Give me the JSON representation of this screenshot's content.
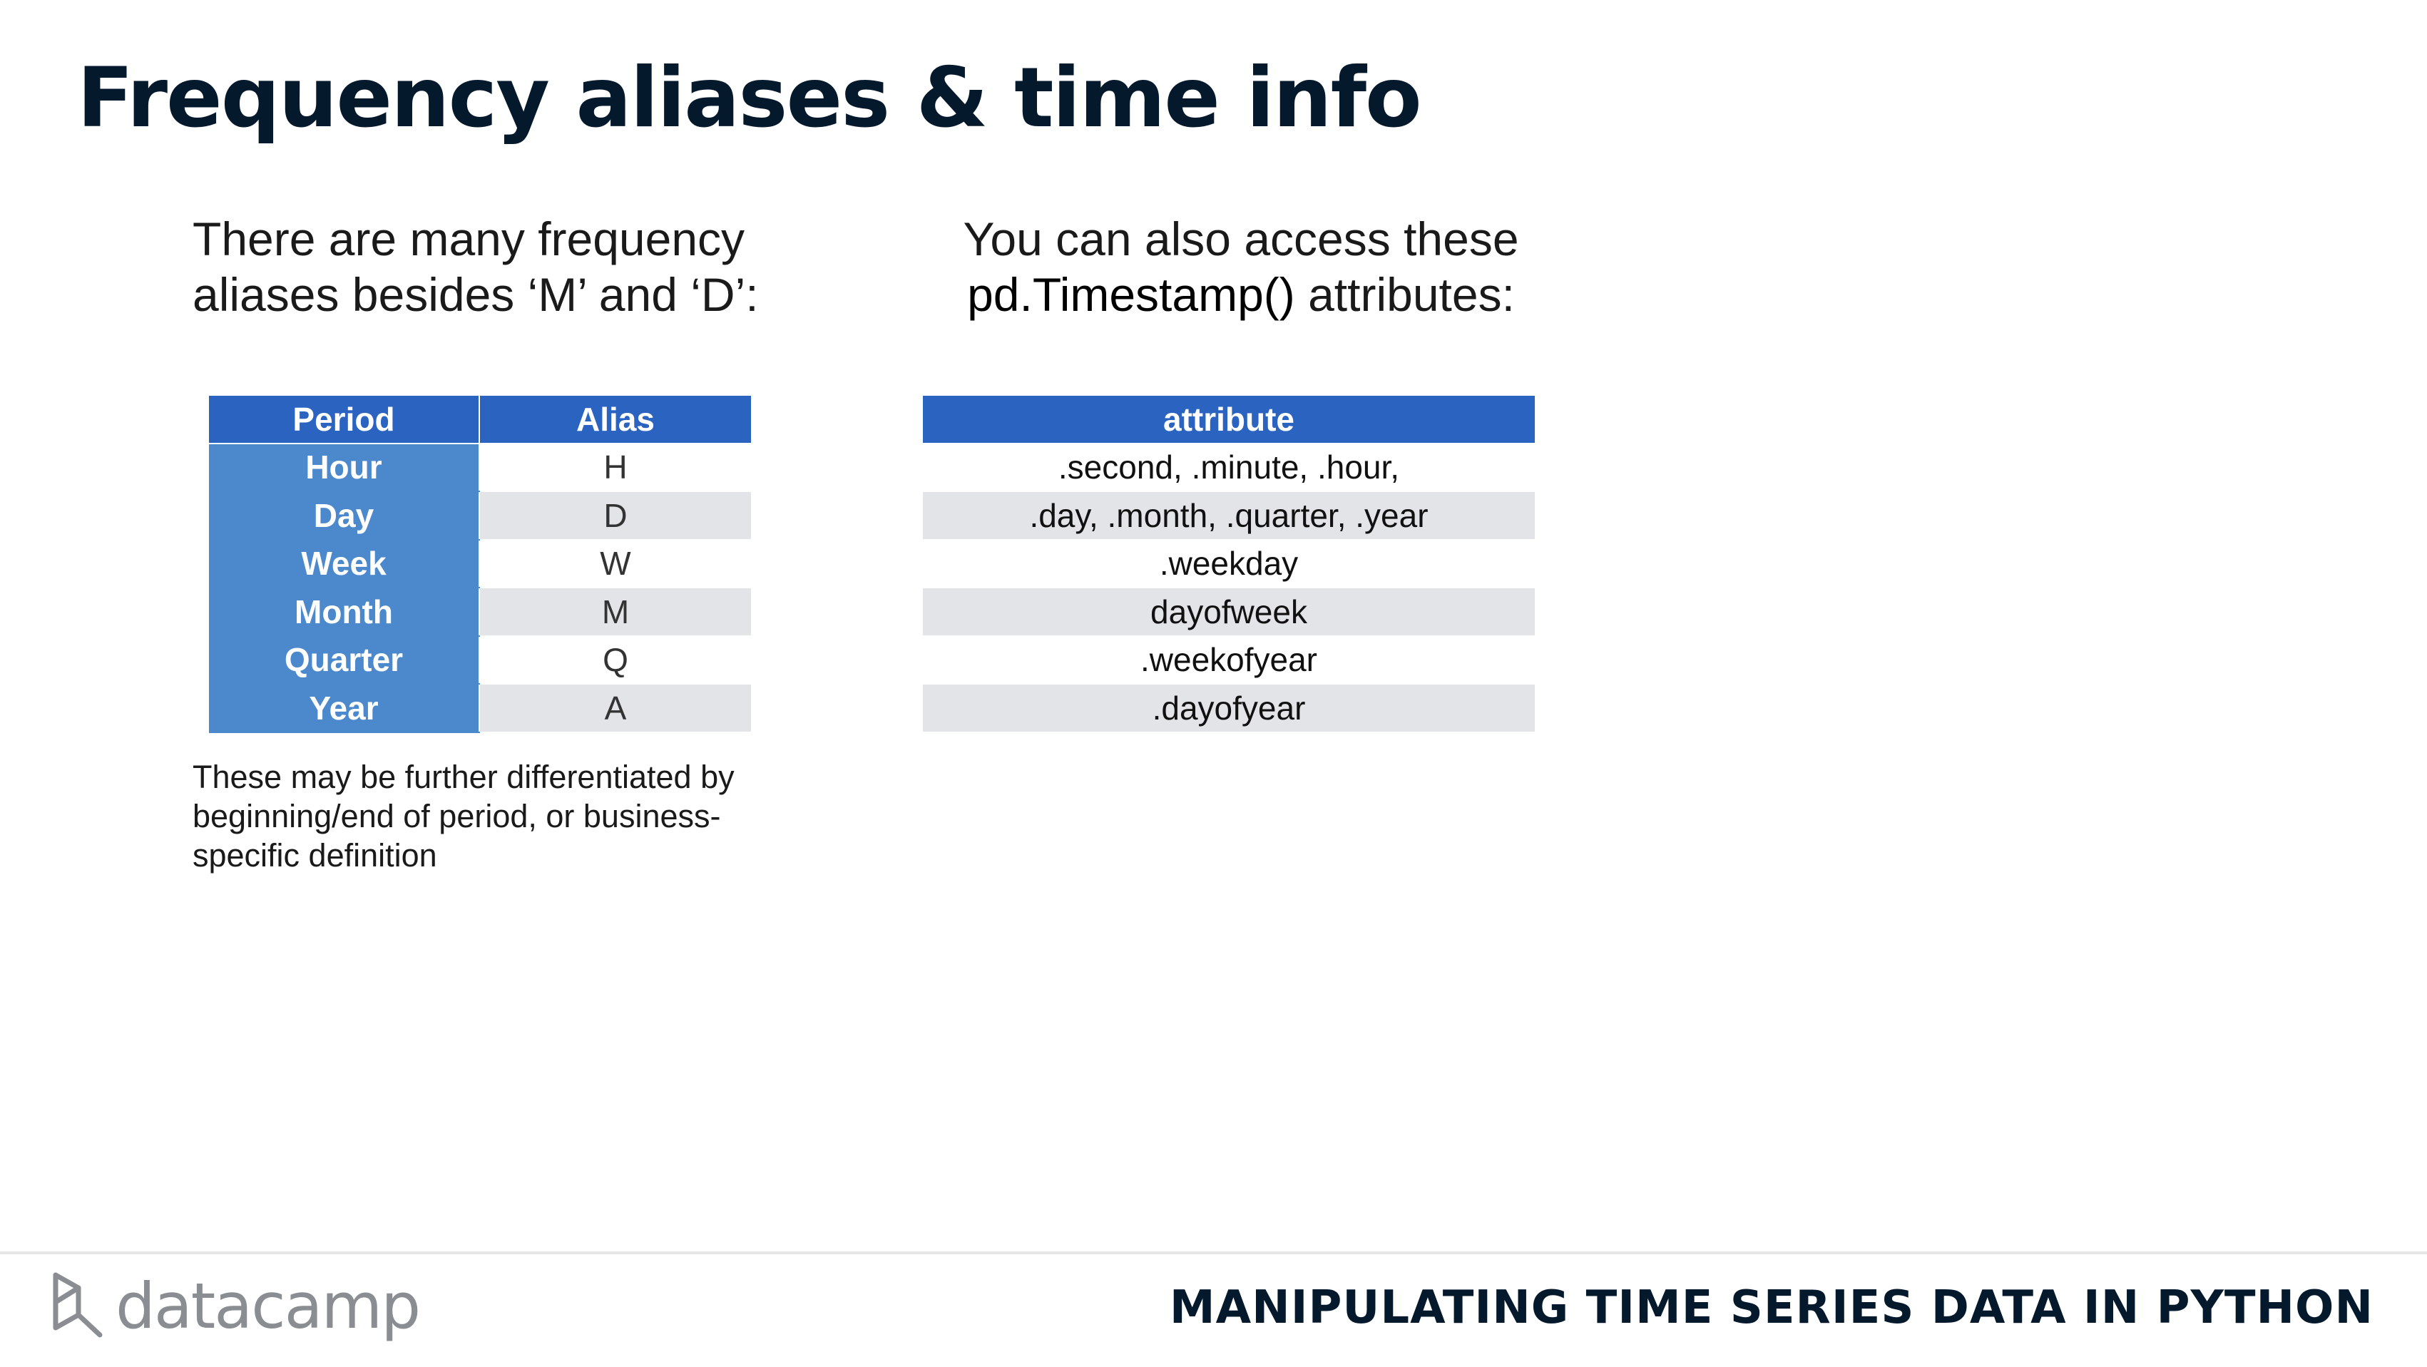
{
  "title": "Frequency aliases & time info",
  "intro_left": {
    "line1": "There are many frequency",
    "line2": "aliases besides ‘M’ and ‘D’:"
  },
  "intro_right": {
    "line1": "You can also access these",
    "code": "pd.Timestamp()",
    "line2_rest": " attributes:"
  },
  "alias_table": {
    "headers": [
      "Period",
      "Alias"
    ],
    "rows": [
      {
        "period": "Hour",
        "alias": "H"
      },
      {
        "period": "Day",
        "alias": "D"
      },
      {
        "period": "Week",
        "alias": "W"
      },
      {
        "period": "Month",
        "alias": "M"
      },
      {
        "period": "Quarter",
        "alias": "Q"
      },
      {
        "period": "Year",
        "alias": "A"
      }
    ]
  },
  "attribute_table": {
    "header": "attribute",
    "rows": [
      ".second, .minute, .hour,",
      ".day, .month, .quarter, .year",
      ".weekday",
      "dayofweek",
      ".weekofyear",
      ".dayofyear"
    ]
  },
  "note": "These may be further differentiated by beginning/end of period, or business-specific definition",
  "footer": {
    "logo_text": "datacamp",
    "logo_icon": "datacamp-logo-icon",
    "course_title": "MANIPULATING TIME SERIES DATA IN PYTHON"
  },
  "colors": {
    "header_blue": "#2b63c0",
    "period_blue": "#4c88cc",
    "stripe_gray": "#e3e4e8",
    "title_navy": "#05192d"
  }
}
